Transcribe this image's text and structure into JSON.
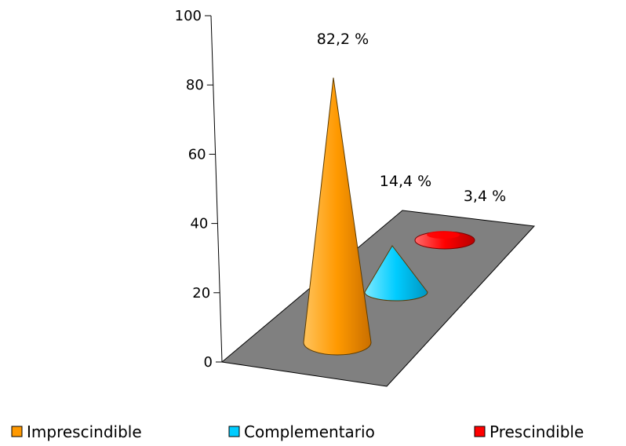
{
  "chart_data": {
    "type": "bar",
    "subtype": "3d-cone",
    "categories": [
      "Imprescindible",
      "Complementario",
      "Prescindible"
    ],
    "values": [
      82.2,
      14.4,
      3.4
    ],
    "data_labels": [
      "82,2 %",
      "14,4 %",
      "3,4 %"
    ],
    "colors": [
      "#ff9900",
      "#00ccff",
      "#ff0000"
    ],
    "floor_color": "#808080",
    "ylim": [
      0,
      100
    ],
    "yticks": [
      "0",
      "20",
      "40",
      "60",
      "80",
      "100"
    ],
    "ytick_values": [
      0,
      20,
      40,
      60,
      80,
      100
    ],
    "legend_position": "bottom",
    "grid": false,
    "title": "",
    "xlabel": "",
    "ylabel": ""
  }
}
